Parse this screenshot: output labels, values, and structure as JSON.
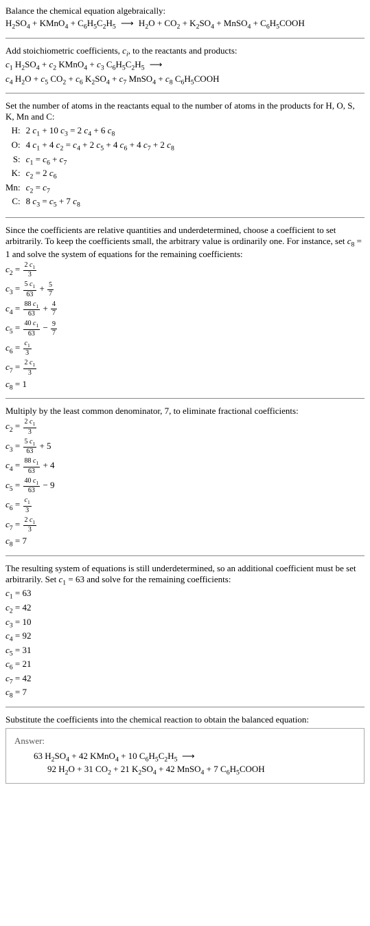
{
  "intro": {
    "line1": "Balance the chemical equation algebraically:",
    "reaction_lhs": "H₂SO₄ + KMnO₄ + C₆H₅C₂H₅",
    "reaction_rhs": "H₂O + CO₂ + K₂SO₄ + MnSO₄ + C₆H₅COOH",
    "arrow": "⟶"
  },
  "stoich": {
    "text": "Add stoichiometric coefficients, ",
    "ci": "c",
    "ci_sub": "i",
    "text2": ", to the reactants and products:",
    "line1_l": "c₁ H₂SO₄ + c₂ KMnO₄ + c₃ C₆H₅C₂H₅",
    "line2": "c₄ H₂O + c₅ CO₂ + c₆ K₂SO₄ + c₇ MnSO₄ + c₈ C₆H₅COOH"
  },
  "atoms": {
    "intro": "Set the number of atoms in the reactants equal to the number of atoms in the products for H, O, S, K, Mn and C:",
    "rows": [
      {
        "label": "H:",
        "eq": "2 c₁ + 10 c₃ = 2 c₄ + 6 c₈"
      },
      {
        "label": "O:",
        "eq": "4 c₁ + 4 c₂ = c₄ + 2 c₅ + 4 c₆ + 4 c₇ + 2 c₈"
      },
      {
        "label": "S:",
        "eq": "c₁ = c₆ + c₇"
      },
      {
        "label": "K:",
        "eq": "c₂ = 2 c₆"
      },
      {
        "label": "Mn:",
        "eq": "c₂ = c₇"
      },
      {
        "label": "C:",
        "eq": "8 c₃ = c₅ + 7 c₈"
      }
    ]
  },
  "underdetermined": {
    "text": "Since the coefficients are relative quantities and underdetermined, choose a coefficient to set arbitrarily. To keep the coefficients small, the arbitrary value is ordinarily one. For instance, set c₈ = 1 and solve the system of equations for the remaining coefficients:",
    "coefs": [
      {
        "lhs": "c₂ =",
        "frac_num": "2 c₁",
        "frac_den": "3",
        "plus": ""
      },
      {
        "lhs": "c₃ =",
        "frac_num": "5 c₁",
        "frac_den": "63",
        "plus": " + ",
        "frac2_num": "5",
        "frac2_den": "7"
      },
      {
        "lhs": "c₄ =",
        "frac_num": "88 c₁",
        "frac_den": "63",
        "plus": " + ",
        "frac2_num": "4",
        "frac2_den": "7"
      },
      {
        "lhs": "c₅ =",
        "frac_num": "40 c₁",
        "frac_den": "63",
        "plus": " − ",
        "frac2_num": "9",
        "frac2_den": "7"
      },
      {
        "lhs": "c₆ =",
        "frac_num": "c₁",
        "frac_den": "3",
        "plus": ""
      },
      {
        "lhs": "c₇ =",
        "frac_num": "2 c₁",
        "frac_den": "3",
        "plus": ""
      },
      {
        "lhs": "c₈ =",
        "plain": "1"
      }
    ]
  },
  "multiply": {
    "text": "Multiply by the least common denominator, 7, to eliminate fractional coefficients:",
    "coefs": [
      {
        "lhs": "c₂ =",
        "frac_num": "2 c₁",
        "frac_den": "3",
        "plus": ""
      },
      {
        "lhs": "c₃ =",
        "frac_num": "5 c₁",
        "frac_den": "63",
        "plus": " + 5"
      },
      {
        "lhs": "c₄ =",
        "frac_num": "88 c₁",
        "frac_den": "63",
        "plus": " + 4"
      },
      {
        "lhs": "c₅ =",
        "frac_num": "40 c₁",
        "frac_den": "63",
        "plus": " − 9"
      },
      {
        "lhs": "c₆ =",
        "frac_num": "c₁",
        "frac_den": "3",
        "plus": ""
      },
      {
        "lhs": "c₇ =",
        "frac_num": "2 c₁",
        "frac_den": "3",
        "plus": ""
      },
      {
        "lhs": "c₈ =",
        "plain": "7"
      }
    ]
  },
  "resulting": {
    "text": "The resulting system of equations is still underdetermined, so an additional coefficient must be set arbitrarily. Set c₁ = 63 and solve for the remaining coefficients:",
    "coefs": [
      "c₁ = 63",
      "c₂ = 42",
      "c₃ = 10",
      "c₄ = 92",
      "c₅ = 31",
      "c₆ = 21",
      "c₇ = 42",
      "c₈ = 7"
    ]
  },
  "substitute": {
    "text": "Substitute the coefficients into the chemical reaction to obtain the balanced equation:"
  },
  "answer": {
    "label": "Answer:",
    "line1": "63 H₂SO₄ + 42 KMnO₄ + 10 C₆H₅C₂H₅  ⟶",
    "line2": "92 H₂O + 31 CO₂ + 21 K₂SO₄ + 42 MnSO₄ + 7 C₆H₅COOH"
  }
}
